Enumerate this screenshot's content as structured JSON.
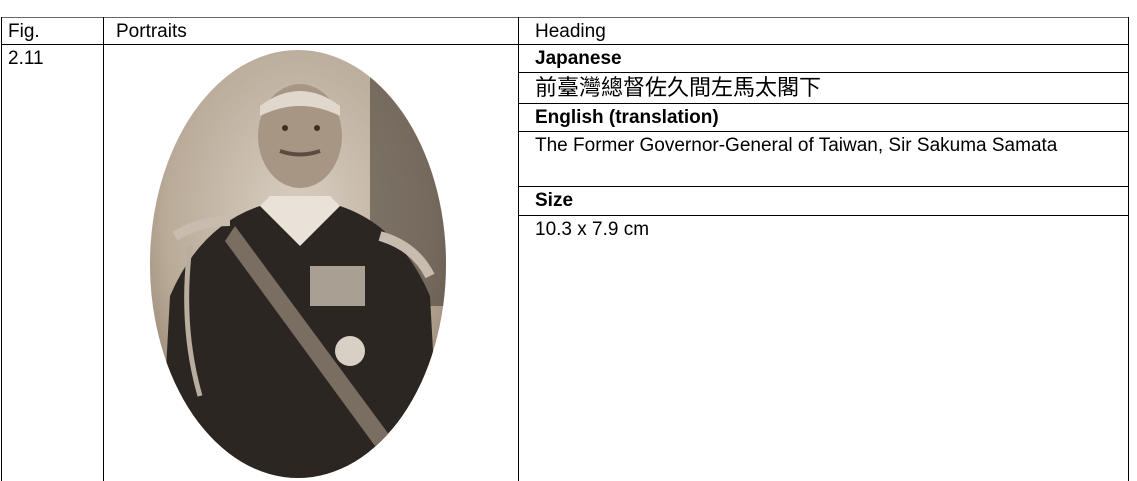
{
  "table": {
    "header": [
      "Fig.",
      "Portraits",
      "Heading"
    ],
    "rows": [
      {
        "fig": "2.11",
        "details": [
          {
            "label": "Japanese",
            "text": "前臺灣總督佐久間左馬太閣下"
          },
          {
            "label": "English (translation)",
            "text": "The Former Governor-General of Taiwan, Sir Sakuma Samata"
          },
          {
            "label": "Size",
            "text": "10.3 x 7.9 cm"
          }
        ]
      }
    ]
  }
}
